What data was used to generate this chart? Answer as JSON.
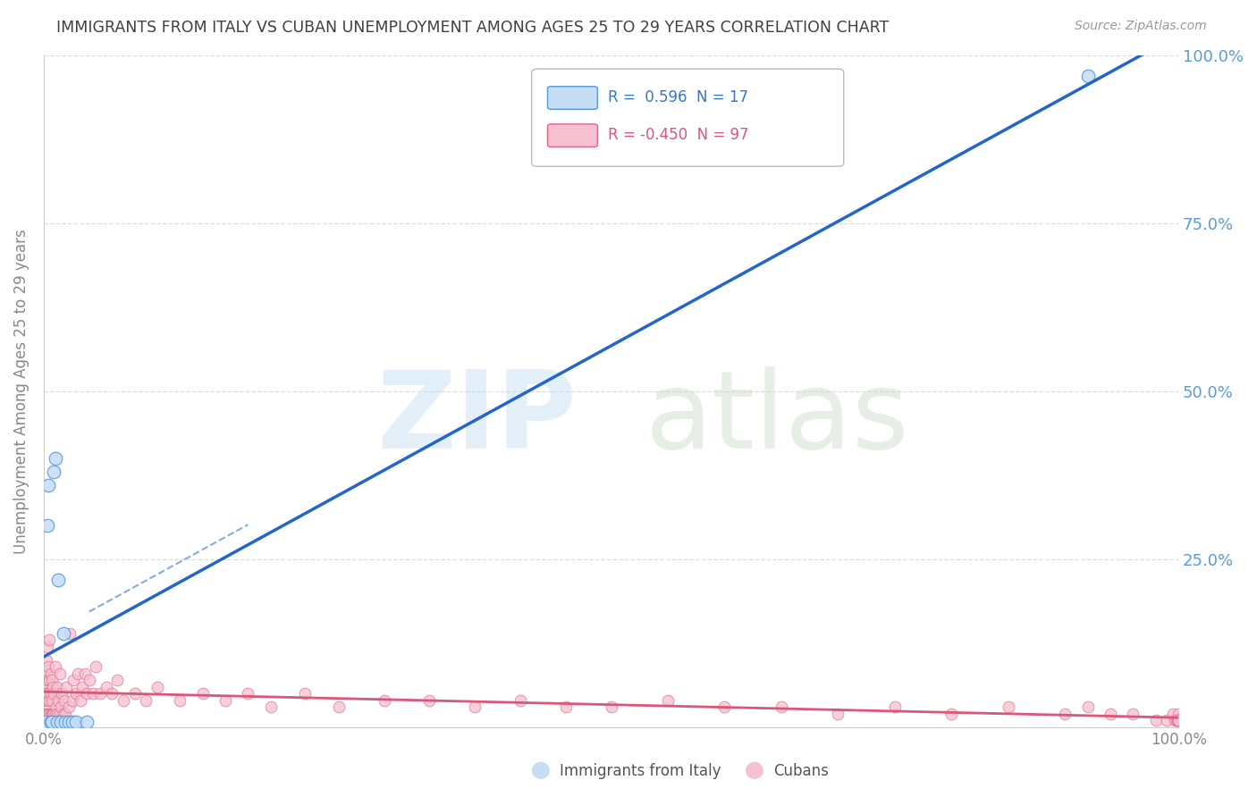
{
  "title": "IMMIGRANTS FROM ITALY VS CUBAN UNEMPLOYMENT AMONG AGES 25 TO 29 YEARS CORRELATION CHART",
  "source": "Source: ZipAtlas.com",
  "ylabel": "Unemployment Among Ages 25 to 29 years",
  "legend_blue_r_val": "0.596",
  "legend_blue_n_val": "17",
  "legend_pink_r_val": "-0.450",
  "legend_pink_n_val": "97",
  "legend_label_blue": "Immigrants from Italy",
  "legend_label_pink": "Cubans",
  "blue_fill": "#c5ddf5",
  "blue_edge": "#5599dd",
  "blue_line": "#2266cc",
  "pink_fill": "#f5c0d0",
  "pink_edge": "#dd6688",
  "pink_line": "#dd5577",
  "bg_color": "#ffffff",
  "grid_color": "#dddddd",
  "title_color": "#404040",
  "axis_color": "#888888",
  "tick_color": "#5b9bd5",
  "blue_x": [
    0.001,
    0.003,
    0.004,
    0.006,
    0.007,
    0.009,
    0.01,
    0.012,
    0.013,
    0.015,
    0.017,
    0.019,
    0.022,
    0.025,
    0.028,
    0.038,
    0.92
  ],
  "blue_y": [
    0.008,
    0.3,
    0.36,
    0.008,
    0.008,
    0.38,
    0.4,
    0.008,
    0.22,
    0.008,
    0.14,
    0.008,
    0.008,
    0.008,
    0.008,
    0.008,
    0.97
  ],
  "pink_x": [
    0.001,
    0.001,
    0.001,
    0.002,
    0.002,
    0.002,
    0.002,
    0.003,
    0.003,
    0.003,
    0.003,
    0.004,
    0.004,
    0.004,
    0.005,
    0.005,
    0.005,
    0.005,
    0.006,
    0.006,
    0.006,
    0.007,
    0.007,
    0.007,
    0.008,
    0.008,
    0.009,
    0.009,
    0.01,
    0.01,
    0.011,
    0.012,
    0.012,
    0.013,
    0.014,
    0.014,
    0.015,
    0.016,
    0.017,
    0.018,
    0.019,
    0.02,
    0.022,
    0.023,
    0.025,
    0.026,
    0.028,
    0.03,
    0.032,
    0.034,
    0.036,
    0.038,
    0.04,
    0.043,
    0.046,
    0.05,
    0.055,
    0.06,
    0.065,
    0.07,
    0.08,
    0.09,
    0.1,
    0.12,
    0.14,
    0.16,
    0.18,
    0.2,
    0.23,
    0.26,
    0.3,
    0.34,
    0.38,
    0.42,
    0.46,
    0.5,
    0.55,
    0.6,
    0.65,
    0.7,
    0.75,
    0.8,
    0.85,
    0.9,
    0.92,
    0.94,
    0.96,
    0.98,
    0.99,
    0.995,
    0.997,
    0.998,
    0.999,
    1.0,
    1.0,
    1.0,
    1.0
  ],
  "pink_y": [
    0.02,
    0.04,
    0.06,
    0.02,
    0.05,
    0.08,
    0.1,
    0.02,
    0.04,
    0.07,
    0.12,
    0.02,
    0.05,
    0.09,
    0.02,
    0.04,
    0.07,
    0.13,
    0.02,
    0.05,
    0.08,
    0.02,
    0.04,
    0.07,
    0.02,
    0.06,
    0.02,
    0.05,
    0.02,
    0.09,
    0.03,
    0.02,
    0.06,
    0.04,
    0.02,
    0.08,
    0.03,
    0.05,
    0.02,
    0.04,
    0.02,
    0.06,
    0.03,
    0.14,
    0.04,
    0.07,
    0.05,
    0.08,
    0.04,
    0.06,
    0.08,
    0.05,
    0.07,
    0.05,
    0.09,
    0.05,
    0.06,
    0.05,
    0.07,
    0.04,
    0.05,
    0.04,
    0.06,
    0.04,
    0.05,
    0.04,
    0.05,
    0.03,
    0.05,
    0.03,
    0.04,
    0.04,
    0.03,
    0.04,
    0.03,
    0.03,
    0.04,
    0.03,
    0.03,
    0.02,
    0.03,
    0.02,
    0.03,
    0.02,
    0.03,
    0.02,
    0.02,
    0.01,
    0.01,
    0.02,
    0.01,
    0.01,
    0.01,
    0.02,
    0.01,
    0.01,
    0.01
  ],
  "xlim": [
    0.0,
    1.0
  ],
  "ylim": [
    0.0,
    1.0
  ],
  "ytick_positions": [
    0.0,
    0.25,
    0.5,
    0.75,
    1.0
  ],
  "ytick_labels": [
    "",
    "25.0%",
    "50.0%",
    "75.0%",
    "100.0%"
  ],
  "xtick_positions": [
    0.0,
    1.0
  ],
  "xtick_labels": [
    "0.0%",
    "100.0%"
  ]
}
